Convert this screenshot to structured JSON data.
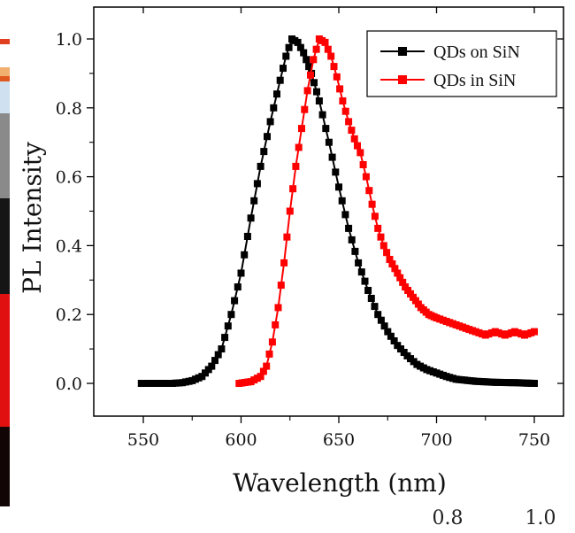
{
  "chart_data": {
    "type": "line",
    "title": "",
    "xlabel": "Wavelength (nm)",
    "ylabel": "PL Intensity",
    "xlim": [
      530,
      760
    ],
    "ylim": [
      -0.1,
      1.08
    ],
    "xticks": [
      550,
      600,
      650,
      700,
      750
    ],
    "yticks": [
      0.0,
      0.2,
      0.4,
      0.6,
      0.8,
      1.0
    ],
    "xtick_labels": [
      "550",
      "600",
      "650",
      "700",
      "750"
    ],
    "ytick_labels": [
      "0.0",
      "0.2",
      "0.4",
      "0.6",
      "0.8",
      "1.0"
    ],
    "grid": false,
    "legend_position": "top-right",
    "series": [
      {
        "name": "QDs on SiN",
        "color": "#000000",
        "marker": "square",
        "points": [
          [
            549,
            0.0
          ],
          [
            555,
            0.0
          ],
          [
            560,
            0.0
          ],
          [
            565,
            0.0
          ],
          [
            570,
            0.002
          ],
          [
            575,
            0.008
          ],
          [
            580,
            0.02
          ],
          [
            585,
            0.05
          ],
          [
            590,
            0.1
          ],
          [
            595,
            0.2
          ],
          [
            600,
            0.32
          ],
          [
            605,
            0.48
          ],
          [
            610,
            0.63
          ],
          [
            615,
            0.76
          ],
          [
            620,
            0.88
          ],
          [
            623,
            0.95
          ],
          [
            626,
            1.0
          ],
          [
            629,
            0.99
          ],
          [
            632,
            0.96
          ],
          [
            636,
            0.9
          ],
          [
            640,
            0.82
          ],
          [
            645,
            0.7
          ],
          [
            650,
            0.57
          ],
          [
            655,
            0.45
          ],
          [
            660,
            0.35
          ],
          [
            665,
            0.27
          ],
          [
            670,
            0.2
          ],
          [
            675,
            0.15
          ],
          [
            680,
            0.11
          ],
          [
            685,
            0.08
          ],
          [
            690,
            0.055
          ],
          [
            695,
            0.04
          ],
          [
            700,
            0.03
          ],
          [
            705,
            0.02
          ],
          [
            710,
            0.012
          ],
          [
            720,
            0.006
          ],
          [
            730,
            0.003
          ],
          [
            740,
            0.002
          ],
          [
            750,
            0.0
          ]
        ]
      },
      {
        "name": "QDs in SiN",
        "color": "#ff0000",
        "marker": "square",
        "points": [
          [
            599,
            0.0
          ],
          [
            605,
            0.005
          ],
          [
            610,
            0.02
          ],
          [
            613,
            0.05
          ],
          [
            616,
            0.12
          ],
          [
            619,
            0.22
          ],
          [
            622,
            0.35
          ],
          [
            625,
            0.5
          ],
          [
            628,
            0.63
          ],
          [
            631,
            0.74
          ],
          [
            634,
            0.85
          ],
          [
            637,
            0.94
          ],
          [
            640,
            1.0
          ],
          [
            643,
            0.99
          ],
          [
            646,
            0.95
          ],
          [
            649,
            0.89
          ],
          [
            652,
            0.82
          ],
          [
            655,
            0.76
          ],
          [
            658,
            0.71
          ],
          [
            661,
            0.67
          ],
          [
            664,
            0.6
          ],
          [
            667,
            0.52
          ],
          [
            670,
            0.45
          ],
          [
            673,
            0.4
          ],
          [
            676,
            0.36
          ],
          [
            680,
            0.32
          ],
          [
            684,
            0.28
          ],
          [
            688,
            0.25
          ],
          [
            692,
            0.22
          ],
          [
            696,
            0.2
          ],
          [
            700,
            0.19
          ],
          [
            705,
            0.18
          ],
          [
            710,
            0.17
          ],
          [
            715,
            0.16
          ],
          [
            720,
            0.15
          ],
          [
            725,
            0.14
          ],
          [
            730,
            0.15
          ],
          [
            735,
            0.14
          ],
          [
            740,
            0.15
          ],
          [
            745,
            0.14
          ],
          [
            750,
            0.15
          ]
        ]
      }
    ]
  },
  "stray_labels": [
    "0.8",
    "1.0"
  ]
}
